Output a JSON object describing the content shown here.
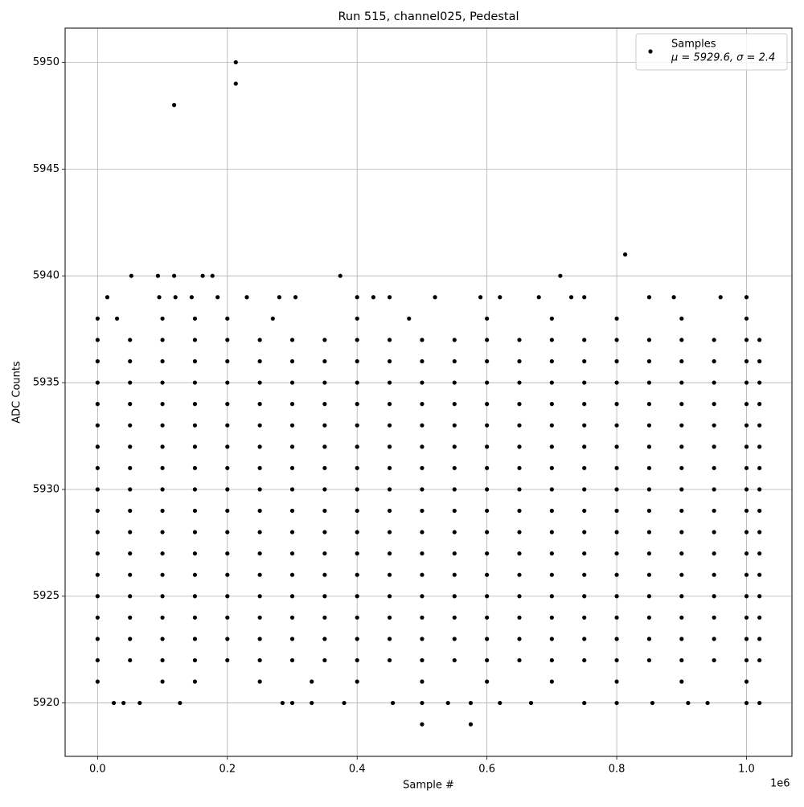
{
  "chart_data": {
    "type": "scatter",
    "title": "Run 515, channel025, Pedestal",
    "x_label": "Sample #",
    "y_label": "ADC Counts",
    "x_offset_label": "1e6",
    "legend_note": "μ = 5929.6, σ = 2.4",
    "legend_position": "upper right",
    "grid": true,
    "xlim": [
      -50000,
      1070000
    ],
    "ylim": [
      5917.5,
      5951.6
    ],
    "xticks": [
      {
        "value": 0,
        "label": "0.0"
      },
      {
        "value": 200000,
        "label": "0.2"
      },
      {
        "value": 400000,
        "label": "0.4"
      },
      {
        "value": 600000,
        "label": "0.6"
      },
      {
        "value": 800000,
        "label": "0.8"
      },
      {
        "value": 1000000,
        "label": "1.0"
      }
    ],
    "yticks": [
      5920,
      5925,
      5930,
      5935,
      5940,
      5945,
      5950
    ],
    "series": [
      {
        "name": "Samples",
        "color": "#000000",
        "x": [
          0,
          50000,
          100000,
          150000,
          200000,
          250000,
          300000,
          350000,
          400000,
          450000,
          500000,
          550000,
          600000,
          650000,
          700000,
          750000,
          800000,
          850000,
          900000,
          950000,
          1000000,
          1020000,
          0,
          50000,
          100000,
          150000,
          200000,
          250000,
          300000,
          350000,
          400000,
          450000,
          500000,
          550000,
          600000,
          650000,
          700000,
          750000,
          800000,
          850000,
          900000,
          950000,
          1000000,
          1020000,
          0,
          50000,
          100000,
          150000,
          200000,
          250000,
          300000,
          350000,
          400000,
          450000,
          500000,
          550000,
          600000,
          650000,
          700000,
          750000,
          800000,
          850000,
          900000,
          950000,
          1000000,
          1020000,
          0,
          50000,
          100000,
          150000,
          200000,
          250000,
          300000,
          350000,
          400000,
          450000,
          500000,
          550000,
          600000,
          650000,
          700000,
          750000,
          800000,
          850000,
          900000,
          950000,
          1000000,
          1020000,
          0,
          50000,
          100000,
          150000,
          200000,
          250000,
          300000,
          350000,
          400000,
          450000,
          500000,
          550000,
          600000,
          650000,
          700000,
          750000,
          800000,
          850000,
          900000,
          950000,
          1000000,
          1020000,
          0,
          50000,
          100000,
          150000,
          200000,
          250000,
          300000,
          350000,
          400000,
          450000,
          500000,
          550000,
          600000,
          650000,
          700000,
          750000,
          800000,
          850000,
          900000,
          950000,
          1000000,
          1020000,
          0,
          50000,
          100000,
          150000,
          200000,
          250000,
          300000,
          350000,
          400000,
          450000,
          500000,
          550000,
          600000,
          650000,
          700000,
          750000,
          800000,
          850000,
          900000,
          950000,
          1000000,
          1020000,
          0,
          50000,
          100000,
          150000,
          200000,
          250000,
          300000,
          350000,
          400000,
          450000,
          500000,
          550000,
          600000,
          650000,
          700000,
          750000,
          800000,
          850000,
          900000,
          950000,
          1000000,
          1020000,
          0,
          50000,
          100000,
          150000,
          200000,
          250000,
          300000,
          350000,
          400000,
          450000,
          500000,
          550000,
          600000,
          650000,
          700000,
          750000,
          800000,
          850000,
          900000,
          950000,
          1000000,
          1020000,
          0,
          50000,
          100000,
          150000,
          200000,
          250000,
          300000,
          350000,
          400000,
          450000,
          500000,
          550000,
          600000,
          650000,
          700000,
          750000,
          800000,
          850000,
          900000,
          950000,
          1000000,
          1020000,
          0,
          50000,
          100000,
          150000,
          200000,
          250000,
          300000,
          350000,
          400000,
          450000,
          500000,
          550000,
          600000,
          650000,
          700000,
          750000,
          800000,
          850000,
          900000,
          950000,
          1000000,
          1020000,
          0,
          50000,
          100000,
          150000,
          200000,
          250000,
          300000,
          350000,
          400000,
          450000,
          500000,
          550000,
          600000,
          650000,
          700000,
          750000,
          800000,
          850000,
          900000,
          950000,
          1000000,
          1020000,
          0,
          50000,
          100000,
          150000,
          200000,
          250000,
          300000,
          350000,
          400000,
          450000,
          500000,
          550000,
          600000,
          650000,
          700000,
          750000,
          800000,
          850000,
          900000,
          950000,
          1000000,
          1020000,
          0,
          50000,
          100000,
          150000,
          200000,
          250000,
          300000,
          350000,
          400000,
          450000,
          500000,
          550000,
          600000,
          650000,
          700000,
          750000,
          800000,
          850000,
          900000,
          950000,
          1000000,
          1020000,
          0,
          50000,
          100000,
          150000,
          200000,
          250000,
          300000,
          350000,
          400000,
          450000,
          500000,
          550000,
          600000,
          650000,
          700000,
          750000,
          800000,
          850000,
          900000,
          950000,
          1000000,
          1020000,
          0,
          50000,
          100000,
          150000,
          200000,
          250000,
          300000,
          350000,
          400000,
          450000,
          500000,
          550000,
          600000,
          650000,
          700000,
          750000,
          800000,
          850000,
          900000,
          950000,
          1000000,
          1020000,
          0,
          30000,
          100000,
          150000,
          200000,
          270000,
          400000,
          480000,
          600000,
          700000,
          800000,
          900000,
          1000000,
          0,
          100000,
          150000,
          250000,
          330000,
          400000,
          500000,
          600000,
          700000,
          800000,
          900000,
          1000000,
          25000,
          40000,
          65000,
          127000,
          285000,
          300000,
          330000,
          380000,
          455000,
          500000,
          540000,
          575000,
          620000,
          668000,
          750000,
          800000,
          855000,
          910000,
          940000,
          1000000,
          1020000,
          15000,
          95000,
          120000,
          145000,
          185000,
          230000,
          280000,
          305000,
          400000,
          425000,
          450000,
          520000,
          590000,
          620000,
          680000,
          730000,
          750000,
          850000,
          888000,
          960000,
          1000000,
          52000,
          93000,
          118000,
          162000,
          177000,
          374000,
          713000,
          813000,
          118000,
          213000,
          213000,
          500000,
          575000
        ],
        "y": [
          5922,
          5922,
          5922,
          5922,
          5922,
          5922,
          5922,
          5922,
          5922,
          5922,
          5922,
          5922,
          5922,
          5922,
          5922,
          5922,
          5922,
          5922,
          5922,
          5922,
          5922,
          5922,
          5923,
          5923,
          5923,
          5923,
          5923,
          5923,
          5923,
          5923,
          5923,
          5923,
          5923,
          5923,
          5923,
          5923,
          5923,
          5923,
          5923,
          5923,
          5923,
          5923,
          5923,
          5923,
          5924,
          5924,
          5924,
          5924,
          5924,
          5924,
          5924,
          5924,
          5924,
          5924,
          5924,
          5924,
          5924,
          5924,
          5924,
          5924,
          5924,
          5924,
          5924,
          5924,
          5924,
          5924,
          5925,
          5925,
          5925,
          5925,
          5925,
          5925,
          5925,
          5925,
          5925,
          5925,
          5925,
          5925,
          5925,
          5925,
          5925,
          5925,
          5925,
          5925,
          5925,
          5925,
          5925,
          5925,
          5926,
          5926,
          5926,
          5926,
          5926,
          5926,
          5926,
          5926,
          5926,
          5926,
          5926,
          5926,
          5926,
          5926,
          5926,
          5926,
          5926,
          5926,
          5926,
          5926,
          5926,
          5926,
          5927,
          5927,
          5927,
          5927,
          5927,
          5927,
          5927,
          5927,
          5927,
          5927,
          5927,
          5927,
          5927,
          5927,
          5927,
          5927,
          5927,
          5927,
          5927,
          5927,
          5927,
          5927,
          5928,
          5928,
          5928,
          5928,
          5928,
          5928,
          5928,
          5928,
          5928,
          5928,
          5928,
          5928,
          5928,
          5928,
          5928,
          5928,
          5928,
          5928,
          5928,
          5928,
          5928,
          5928,
          5929,
          5929,
          5929,
          5929,
          5929,
          5929,
          5929,
          5929,
          5929,
          5929,
          5929,
          5929,
          5929,
          5929,
          5929,
          5929,
          5929,
          5929,
          5929,
          5929,
          5929,
          5929,
          5930,
          5930,
          5930,
          5930,
          5930,
          5930,
          5930,
          5930,
          5930,
          5930,
          5930,
          5930,
          5930,
          5930,
          5930,
          5930,
          5930,
          5930,
          5930,
          5930,
          5930,
          5930,
          5931,
          5931,
          5931,
          5931,
          5931,
          5931,
          5931,
          5931,
          5931,
          5931,
          5931,
          5931,
          5931,
          5931,
          5931,
          5931,
          5931,
          5931,
          5931,
          5931,
          5931,
          5931,
          5932,
          5932,
          5932,
          5932,
          5932,
          5932,
          5932,
          5932,
          5932,
          5932,
          5932,
          5932,
          5932,
          5932,
          5932,
          5932,
          5932,
          5932,
          5932,
          5932,
          5932,
          5932,
          5933,
          5933,
          5933,
          5933,
          5933,
          5933,
          5933,
          5933,
          5933,
          5933,
          5933,
          5933,
          5933,
          5933,
          5933,
          5933,
          5933,
          5933,
          5933,
          5933,
          5933,
          5933,
          5934,
          5934,
          5934,
          5934,
          5934,
          5934,
          5934,
          5934,
          5934,
          5934,
          5934,
          5934,
          5934,
          5934,
          5934,
          5934,
          5934,
          5934,
          5934,
          5934,
          5934,
          5934,
          5935,
          5935,
          5935,
          5935,
          5935,
          5935,
          5935,
          5935,
          5935,
          5935,
          5935,
          5935,
          5935,
          5935,
          5935,
          5935,
          5935,
          5935,
          5935,
          5935,
          5935,
          5935,
          5936,
          5936,
          5936,
          5936,
          5936,
          5936,
          5936,
          5936,
          5936,
          5936,
          5936,
          5936,
          5936,
          5936,
          5936,
          5936,
          5936,
          5936,
          5936,
          5936,
          5936,
          5936,
          5937,
          5937,
          5937,
          5937,
          5937,
          5937,
          5937,
          5937,
          5937,
          5937,
          5937,
          5937,
          5937,
          5937,
          5937,
          5937,
          5937,
          5937,
          5937,
          5937,
          5937,
          5937,
          5938,
          5938,
          5938,
          5938,
          5938,
          5938,
          5938,
          5938,
          5938,
          5938,
          5938,
          5938,
          5938,
          5921,
          5921,
          5921,
          5921,
          5921,
          5921,
          5921,
          5921,
          5921,
          5921,
          5921,
          5921,
          5920,
          5920,
          5920,
          5920,
          5920,
          5920,
          5920,
          5920,
          5920,
          5920,
          5920,
          5920,
          5920,
          5920,
          5920,
          5920,
          5920,
          5920,
          5920,
          5920,
          5920,
          5939,
          5939,
          5939,
          5939,
          5939,
          5939,
          5939,
          5939,
          5939,
          5939,
          5939,
          5939,
          5939,
          5939,
          5939,
          5939,
          5939,
          5939,
          5939,
          5939,
          5939,
          5940,
          5940,
          5940,
          5940,
          5940,
          5940,
          5940,
          5941,
          5948,
          5949,
          5950,
          5919,
          5919
        ]
      }
    ]
  }
}
